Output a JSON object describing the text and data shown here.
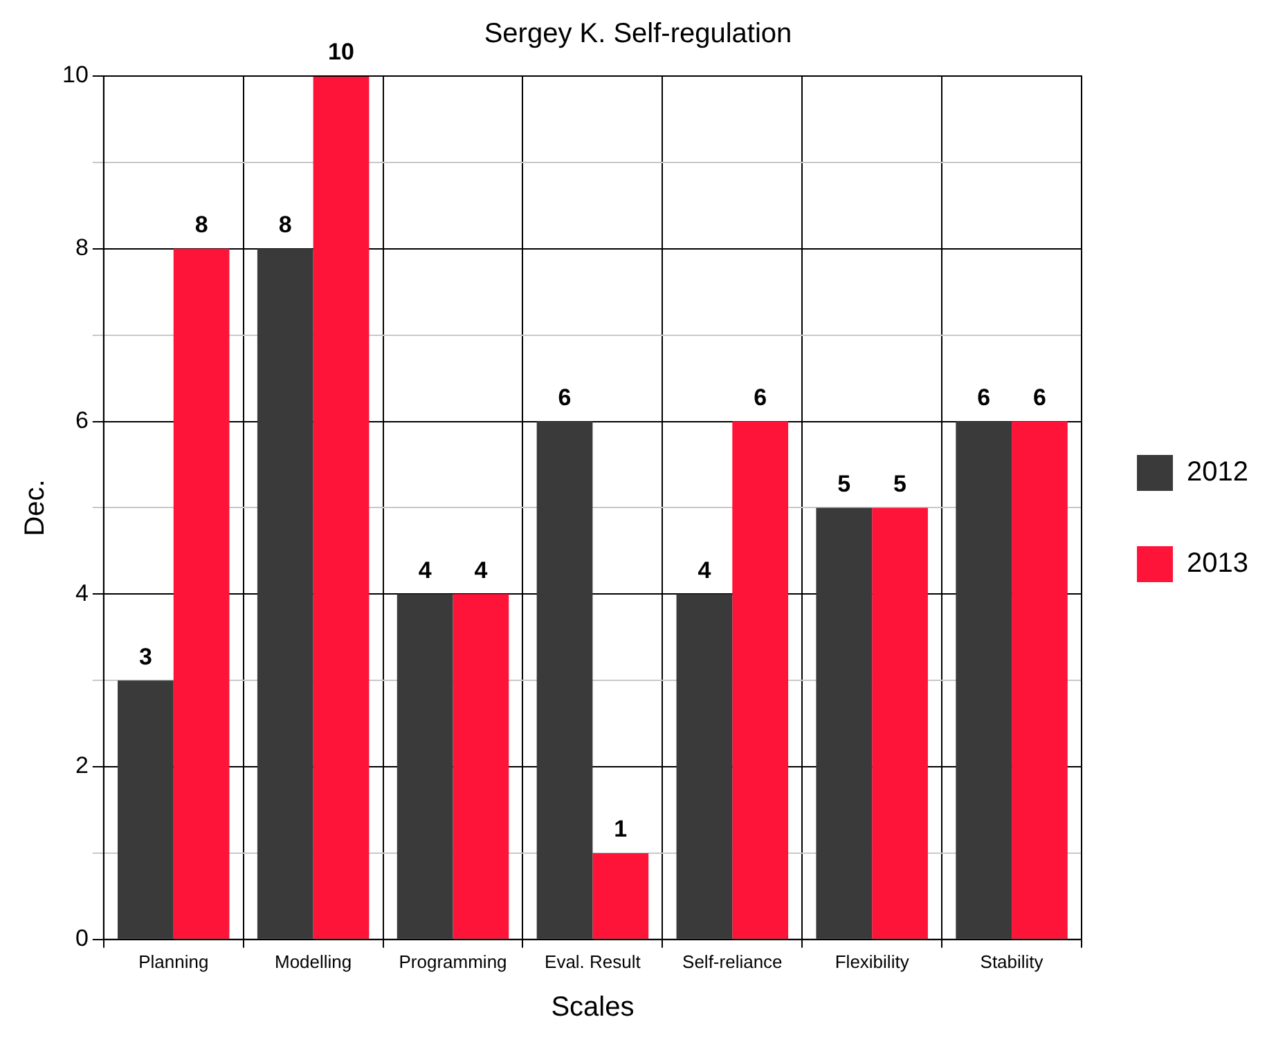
{
  "chart_data": {
    "type": "bar",
    "title": "Sergey K. Self-regulation",
    "xlabel": "Scales",
    "ylabel": "Dec.",
    "categories": [
      "Planning",
      "Modelling",
      "Programming",
      "Eval. Result",
      "Self-reliance",
      "Flexibility",
      "Stability"
    ],
    "series": [
      {
        "name": "2012",
        "color": "#3a3a3a",
        "values": [
          3,
          8,
          4,
          6,
          4,
          5,
          6
        ]
      },
      {
        "name": "2013",
        "color": "#ff1439",
        "values": [
          8,
          10,
          4,
          1,
          6,
          5,
          6
        ]
      }
    ],
    "ylim": [
      0,
      10
    ],
    "yticks": [
      0,
      {
        "value": 1,
        "label": null
      },
      2,
      {
        "value": 3,
        "label": null
      },
      4,
      {
        "value": 5,
        "label": null
      },
      6,
      {
        "value": 7,
        "label": null
      },
      8,
      {
        "value": 9,
        "label": null
      },
      10
    ],
    "grid": true,
    "legend": "right",
    "data_labels": true
  }
}
